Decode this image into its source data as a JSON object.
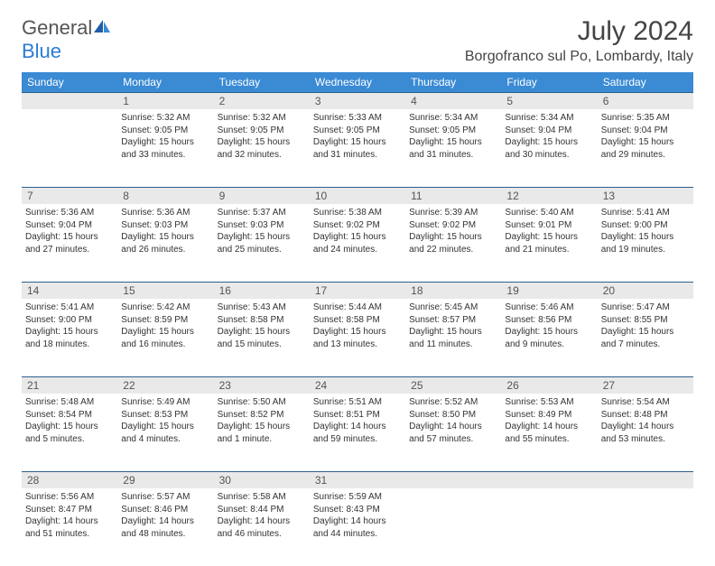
{
  "logo": {
    "text1": "General",
    "text2": "Blue"
  },
  "title": "July 2024",
  "location": "Borgofranco sul Po, Lombardy, Italy",
  "colors": {
    "header_bg": "#3a8ad4",
    "header_text": "#ffffff",
    "daynum_bg": "#e9e9e9",
    "border": "#2c5f8d",
    "logo_blue": "#2b7cd3"
  },
  "day_labels": [
    "Sunday",
    "Monday",
    "Tuesday",
    "Wednesday",
    "Thursday",
    "Friday",
    "Saturday"
  ],
  "weeks": [
    [
      {
        "day": "",
        "l1": "",
        "l2": "",
        "l3": "",
        "l4": ""
      },
      {
        "day": "1",
        "l1": "Sunrise: 5:32 AM",
        "l2": "Sunset: 9:05 PM",
        "l3": "Daylight: 15 hours",
        "l4": "and 33 minutes."
      },
      {
        "day": "2",
        "l1": "Sunrise: 5:32 AM",
        "l2": "Sunset: 9:05 PM",
        "l3": "Daylight: 15 hours",
        "l4": "and 32 minutes."
      },
      {
        "day": "3",
        "l1": "Sunrise: 5:33 AM",
        "l2": "Sunset: 9:05 PM",
        "l3": "Daylight: 15 hours",
        "l4": "and 31 minutes."
      },
      {
        "day": "4",
        "l1": "Sunrise: 5:34 AM",
        "l2": "Sunset: 9:05 PM",
        "l3": "Daylight: 15 hours",
        "l4": "and 31 minutes."
      },
      {
        "day": "5",
        "l1": "Sunrise: 5:34 AM",
        "l2": "Sunset: 9:04 PM",
        "l3": "Daylight: 15 hours",
        "l4": "and 30 minutes."
      },
      {
        "day": "6",
        "l1": "Sunrise: 5:35 AM",
        "l2": "Sunset: 9:04 PM",
        "l3": "Daylight: 15 hours",
        "l4": "and 29 minutes."
      }
    ],
    [
      {
        "day": "7",
        "l1": "Sunrise: 5:36 AM",
        "l2": "Sunset: 9:04 PM",
        "l3": "Daylight: 15 hours",
        "l4": "and 27 minutes."
      },
      {
        "day": "8",
        "l1": "Sunrise: 5:36 AM",
        "l2": "Sunset: 9:03 PM",
        "l3": "Daylight: 15 hours",
        "l4": "and 26 minutes."
      },
      {
        "day": "9",
        "l1": "Sunrise: 5:37 AM",
        "l2": "Sunset: 9:03 PM",
        "l3": "Daylight: 15 hours",
        "l4": "and 25 minutes."
      },
      {
        "day": "10",
        "l1": "Sunrise: 5:38 AM",
        "l2": "Sunset: 9:02 PM",
        "l3": "Daylight: 15 hours",
        "l4": "and 24 minutes."
      },
      {
        "day": "11",
        "l1": "Sunrise: 5:39 AM",
        "l2": "Sunset: 9:02 PM",
        "l3": "Daylight: 15 hours",
        "l4": "and 22 minutes."
      },
      {
        "day": "12",
        "l1": "Sunrise: 5:40 AM",
        "l2": "Sunset: 9:01 PM",
        "l3": "Daylight: 15 hours",
        "l4": "and 21 minutes."
      },
      {
        "day": "13",
        "l1": "Sunrise: 5:41 AM",
        "l2": "Sunset: 9:00 PM",
        "l3": "Daylight: 15 hours",
        "l4": "and 19 minutes."
      }
    ],
    [
      {
        "day": "14",
        "l1": "Sunrise: 5:41 AM",
        "l2": "Sunset: 9:00 PM",
        "l3": "Daylight: 15 hours",
        "l4": "and 18 minutes."
      },
      {
        "day": "15",
        "l1": "Sunrise: 5:42 AM",
        "l2": "Sunset: 8:59 PM",
        "l3": "Daylight: 15 hours",
        "l4": "and 16 minutes."
      },
      {
        "day": "16",
        "l1": "Sunrise: 5:43 AM",
        "l2": "Sunset: 8:58 PM",
        "l3": "Daylight: 15 hours",
        "l4": "and 15 minutes."
      },
      {
        "day": "17",
        "l1": "Sunrise: 5:44 AM",
        "l2": "Sunset: 8:58 PM",
        "l3": "Daylight: 15 hours",
        "l4": "and 13 minutes."
      },
      {
        "day": "18",
        "l1": "Sunrise: 5:45 AM",
        "l2": "Sunset: 8:57 PM",
        "l3": "Daylight: 15 hours",
        "l4": "and 11 minutes."
      },
      {
        "day": "19",
        "l1": "Sunrise: 5:46 AM",
        "l2": "Sunset: 8:56 PM",
        "l3": "Daylight: 15 hours",
        "l4": "and 9 minutes."
      },
      {
        "day": "20",
        "l1": "Sunrise: 5:47 AM",
        "l2": "Sunset: 8:55 PM",
        "l3": "Daylight: 15 hours",
        "l4": "and 7 minutes."
      }
    ],
    [
      {
        "day": "21",
        "l1": "Sunrise: 5:48 AM",
        "l2": "Sunset: 8:54 PM",
        "l3": "Daylight: 15 hours",
        "l4": "and 5 minutes."
      },
      {
        "day": "22",
        "l1": "Sunrise: 5:49 AM",
        "l2": "Sunset: 8:53 PM",
        "l3": "Daylight: 15 hours",
        "l4": "and 4 minutes."
      },
      {
        "day": "23",
        "l1": "Sunrise: 5:50 AM",
        "l2": "Sunset: 8:52 PM",
        "l3": "Daylight: 15 hours",
        "l4": "and 1 minute."
      },
      {
        "day": "24",
        "l1": "Sunrise: 5:51 AM",
        "l2": "Sunset: 8:51 PM",
        "l3": "Daylight: 14 hours",
        "l4": "and 59 minutes."
      },
      {
        "day": "25",
        "l1": "Sunrise: 5:52 AM",
        "l2": "Sunset: 8:50 PM",
        "l3": "Daylight: 14 hours",
        "l4": "and 57 minutes."
      },
      {
        "day": "26",
        "l1": "Sunrise: 5:53 AM",
        "l2": "Sunset: 8:49 PM",
        "l3": "Daylight: 14 hours",
        "l4": "and 55 minutes."
      },
      {
        "day": "27",
        "l1": "Sunrise: 5:54 AM",
        "l2": "Sunset: 8:48 PM",
        "l3": "Daylight: 14 hours",
        "l4": "and 53 minutes."
      }
    ],
    [
      {
        "day": "28",
        "l1": "Sunrise: 5:56 AM",
        "l2": "Sunset: 8:47 PM",
        "l3": "Daylight: 14 hours",
        "l4": "and 51 minutes."
      },
      {
        "day": "29",
        "l1": "Sunrise: 5:57 AM",
        "l2": "Sunset: 8:46 PM",
        "l3": "Daylight: 14 hours",
        "l4": "and 48 minutes."
      },
      {
        "day": "30",
        "l1": "Sunrise: 5:58 AM",
        "l2": "Sunset: 8:44 PM",
        "l3": "Daylight: 14 hours",
        "l4": "and 46 minutes."
      },
      {
        "day": "31",
        "l1": "Sunrise: 5:59 AM",
        "l2": "Sunset: 8:43 PM",
        "l3": "Daylight: 14 hours",
        "l4": "and 44 minutes."
      },
      {
        "day": "",
        "l1": "",
        "l2": "",
        "l3": "",
        "l4": ""
      },
      {
        "day": "",
        "l1": "",
        "l2": "",
        "l3": "",
        "l4": ""
      },
      {
        "day": "",
        "l1": "",
        "l2": "",
        "l3": "",
        "l4": ""
      }
    ]
  ]
}
